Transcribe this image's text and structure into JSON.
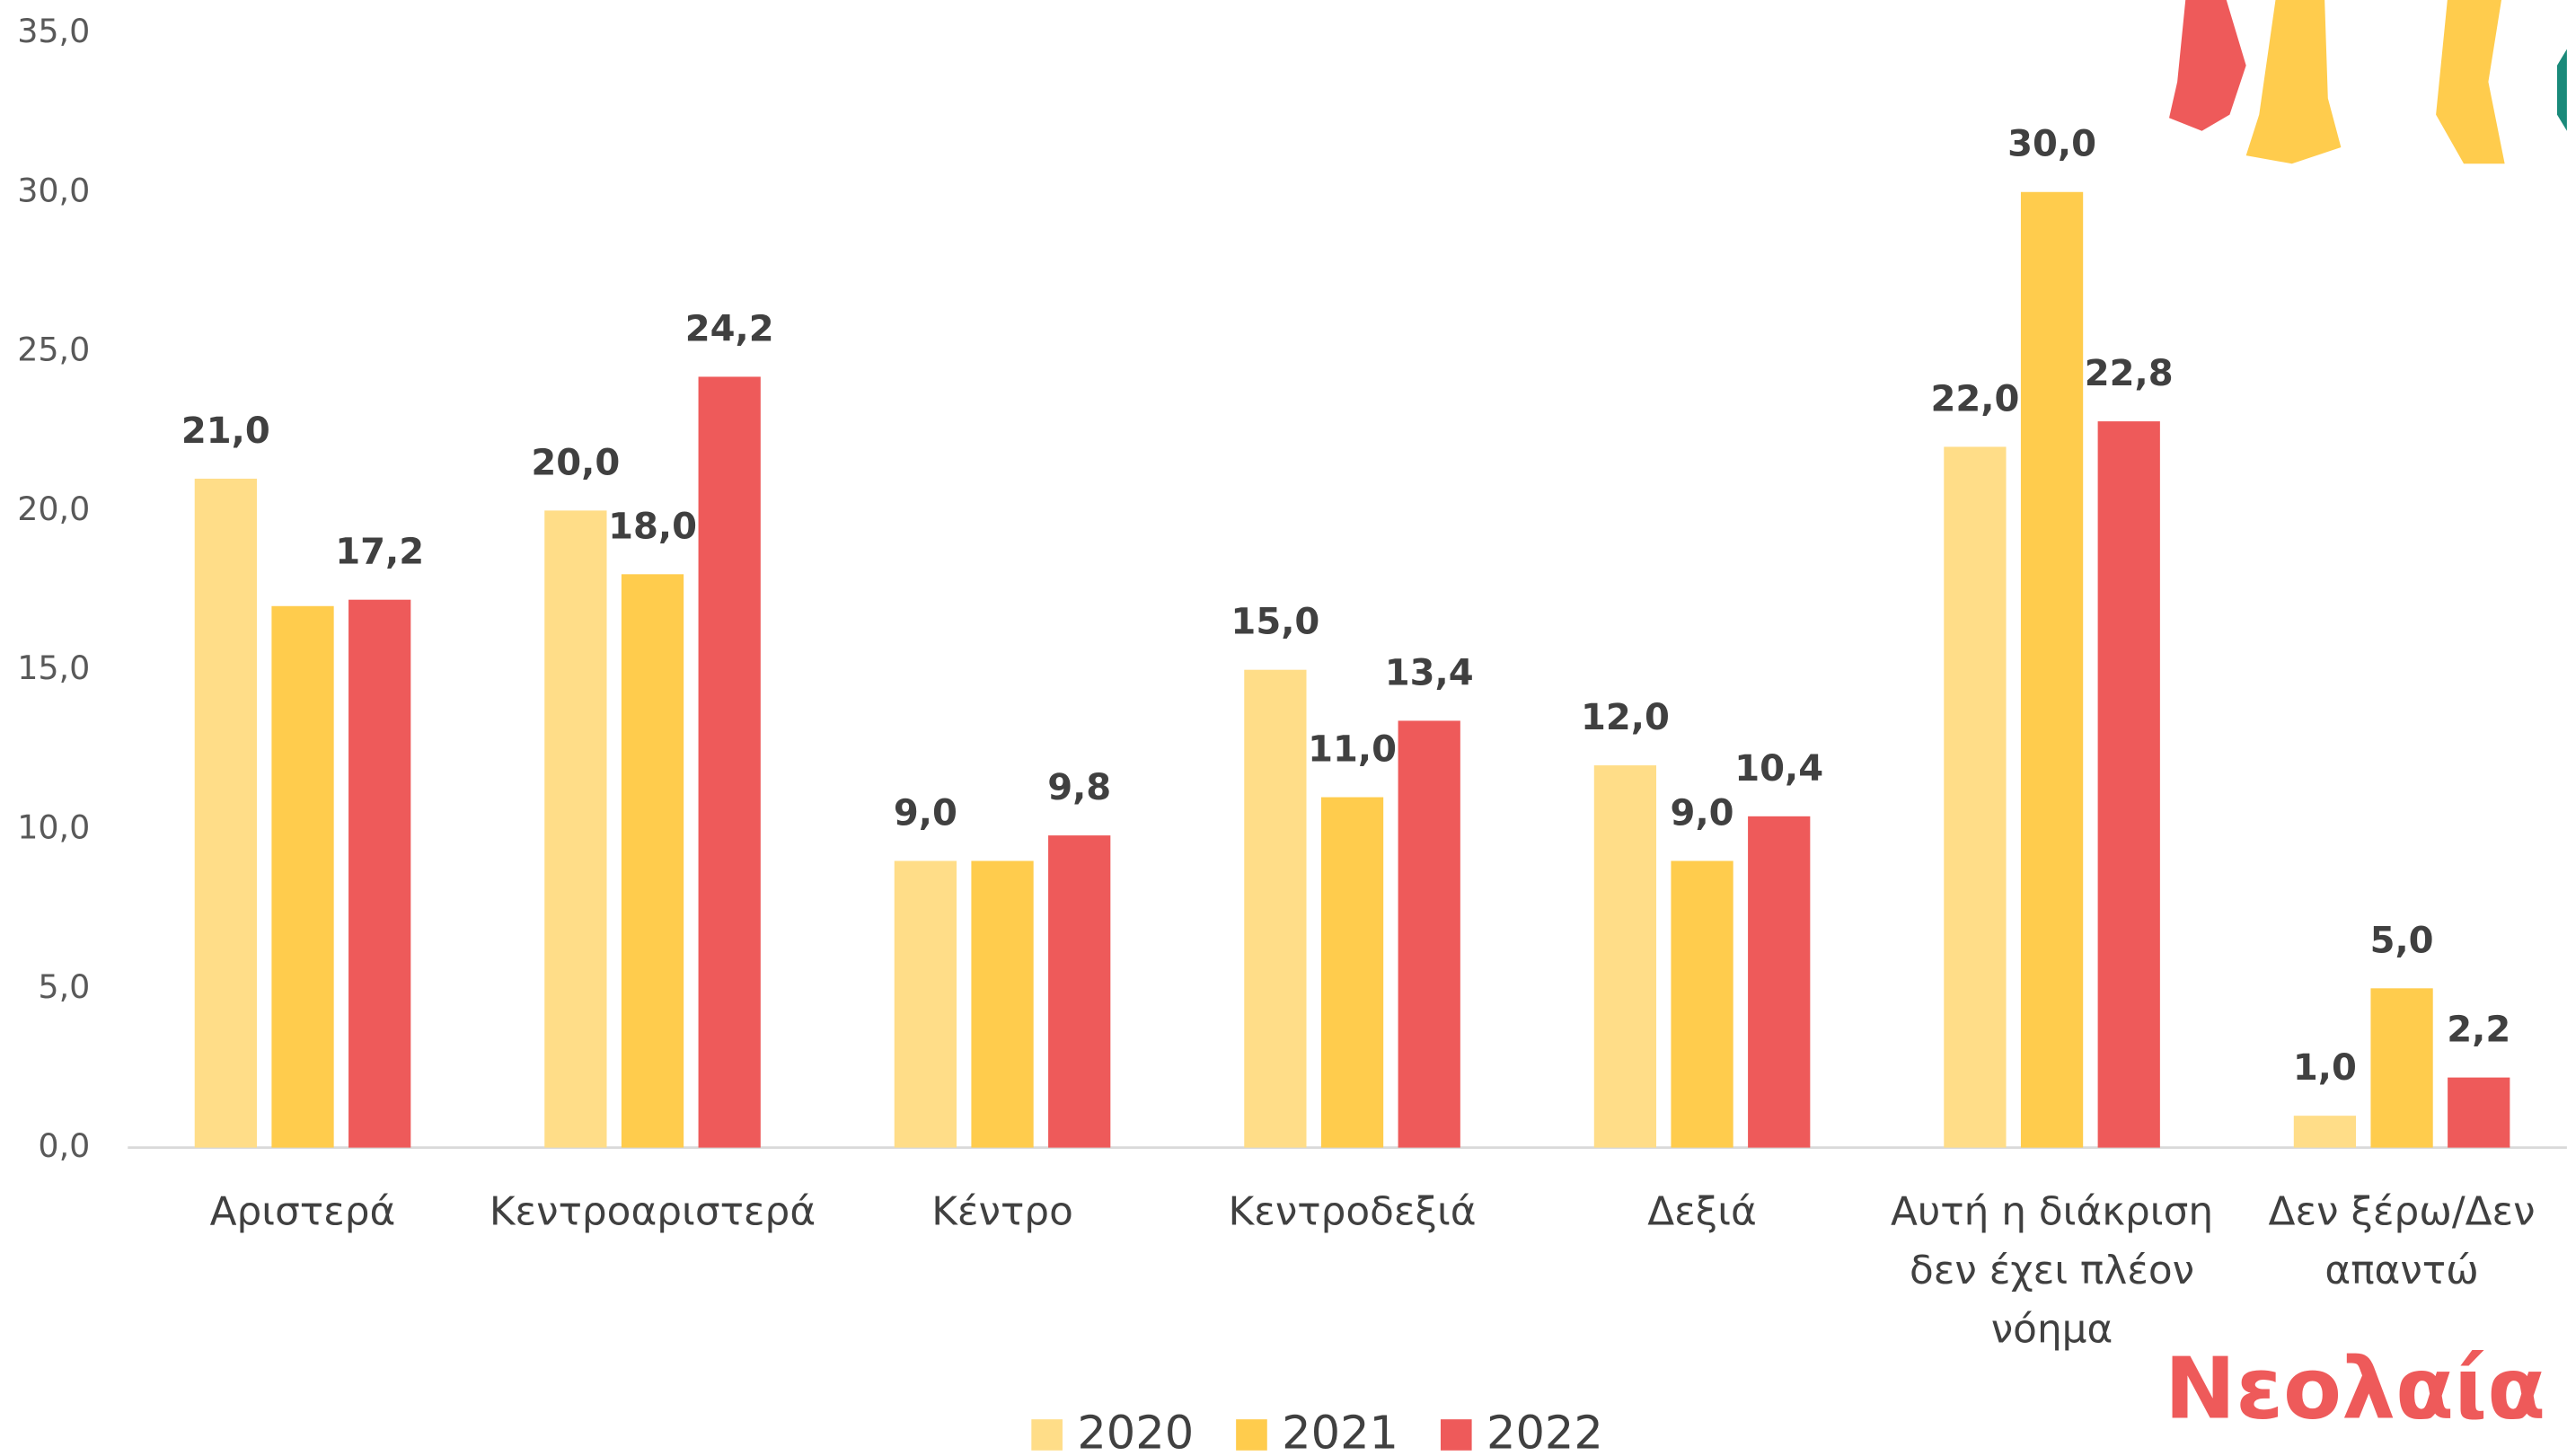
{
  "chart_data": {
    "type": "bar",
    "categories": [
      "Αριστερά",
      "Κεντροαριστερά",
      "Κέντρο",
      "Κεντροδεξιά",
      "Δεξιά",
      "Αυτή η διάκριση δεν έχει πλέον νόημα",
      "Δεν ξέρω/Δεν απαντώ"
    ],
    "series": [
      {
        "name": "2020",
        "color": "#FFDD88",
        "values": [
          21.0,
          20.0,
          9.0,
          15.0,
          12.0,
          22.0,
          1.0
        ],
        "value_labels": [
          "21,0",
          "20,0",
          "9,0",
          "15,0",
          "12,0",
          "22,0",
          "1,0"
        ]
      },
      {
        "name": "2021",
        "color": "#FFCC4D",
        "values": [
          17.0,
          18.0,
          9.0,
          11.0,
          9.0,
          30.0,
          5.0
        ],
        "value_labels": [
          null,
          "18,0",
          null,
          "11,0",
          "9,0",
          "30,0",
          "5,0"
        ]
      },
      {
        "name": "2022",
        "color": "#EE5A5A",
        "values": [
          17.2,
          24.2,
          9.8,
          13.4,
          10.4,
          22.8,
          2.2
        ],
        "value_labels": [
          "17,2",
          "24,2",
          "9,8",
          "13,4",
          "10,4",
          "22,8",
          "2,2"
        ]
      }
    ],
    "ylim": [
      0,
      35
    ],
    "yticks": [
      {
        "value": 0,
        "label": "0,0"
      },
      {
        "value": 5,
        "label": "5,0"
      },
      {
        "value": 10,
        "label": "10,0"
      },
      {
        "value": 15,
        "label": "15,0"
      },
      {
        "value": 20,
        "label": "20,0"
      },
      {
        "value": 25,
        "label": "25,0"
      },
      {
        "value": 30,
        "label": "30,0"
      },
      {
        "value": 35,
        "label": "35,0"
      }
    ],
    "grid": false,
    "legend": "bottom",
    "logo": "Νεολαία"
  }
}
